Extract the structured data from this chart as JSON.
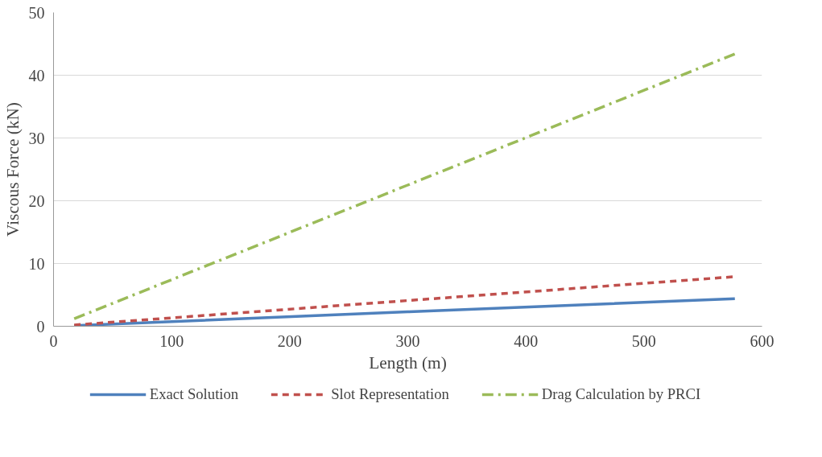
{
  "chart_data": {
    "type": "line",
    "xlabel": "Length (m)",
    "ylabel": "Viscous Force (kN)",
    "xlim": [
      0,
      600
    ],
    "xticks": [
      0,
      100,
      200,
      300,
      400,
      500,
      600
    ],
    "ylim": [
      0,
      50
    ],
    "yticks": [
      0,
      10,
      20,
      30,
      40,
      50
    ],
    "grid": "y",
    "legend": "bottom",
    "series": [
      {
        "name": "Exact Solution",
        "color": "#4f81bd",
        "line_style": "solid",
        "x": [
          17.5,
          300,
          577
        ],
        "values": [
          0.1,
          2.3,
          4.4
        ]
      },
      {
        "name": "Slot Representation",
        "color": "#c0504d",
        "line_style": "dashed",
        "x": [
          17.5,
          300,
          577
        ],
        "values": [
          0.2,
          4.1,
          7.9
        ]
      },
      {
        "name": "Drag Calculation by PRCI",
        "color": "#9bbb59",
        "line_style": "dashdot",
        "x": [
          17.5,
          300,
          577
        ],
        "values": [
          1.2,
          22.5,
          43.4
        ]
      }
    ]
  }
}
